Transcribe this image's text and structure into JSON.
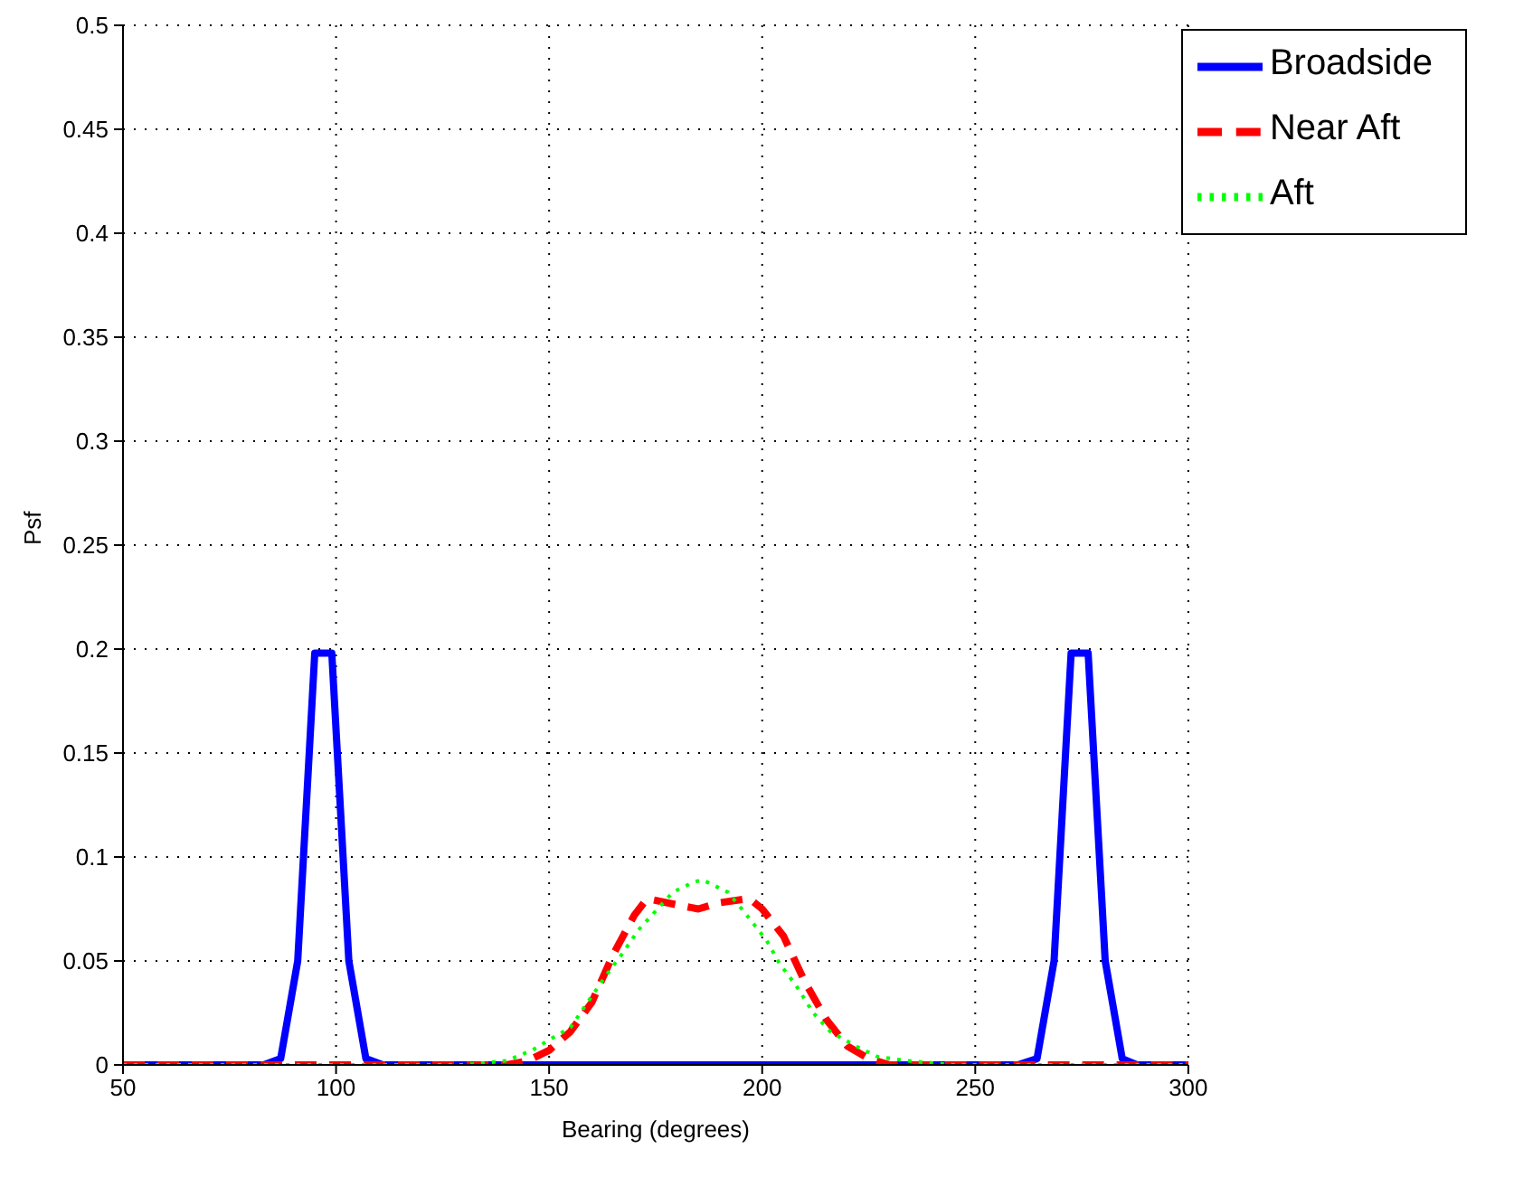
{
  "chart_data": {
    "type": "line",
    "xlabel": "Bearing (degrees)",
    "ylabel": "Psf",
    "xlim": [
      50,
      300
    ],
    "xticks": [
      50,
      100,
      150,
      200,
      250,
      300
    ],
    "ylim": [
      0,
      0.5
    ],
    "yticks": [
      0,
      0.05,
      0.1,
      0.15,
      0.2,
      0.25,
      0.3,
      0.35,
      0.4,
      0.45,
      0.5
    ],
    "grid": true,
    "legend": "top right",
    "marker": "none",
    "series": [
      {
        "name": "Broadside",
        "color": "#0000ff",
        "line_style": "solid",
        "x": [
          50,
          83,
          87,
          91,
          95,
          99,
          103,
          107,
          111,
          260,
          264.5,
          268.5,
          272.5,
          276.5,
          280.5,
          284.5,
          288,
          300
        ],
        "values": [
          0,
          0,
          0.003,
          0.05,
          0.198,
          0.198,
          0.05,
          0.003,
          0,
          0,
          0.003,
          0.05,
          0.198,
          0.198,
          0.05,
          0.003,
          0,
          0
        ]
      },
      {
        "name": "Near Aft",
        "color": "#ff0000",
        "line_style": "dashed",
        "x": [
          50,
          140,
          145,
          150,
          155,
          160,
          165,
          170,
          173,
          180,
          185,
          190,
          197,
          200,
          205,
          210,
          215,
          220,
          225,
          230,
          300
        ],
        "values": [
          0,
          0,
          0.002,
          0.007,
          0.016,
          0.03,
          0.053,
          0.072,
          0.08,
          0.077,
          0.075,
          0.078,
          0.08,
          0.075,
          0.062,
          0.04,
          0.022,
          0.009,
          0.003,
          0,
          0
        ]
      },
      {
        "name": "Aft",
        "color": "#00ff00",
        "line_style": "dotted",
        "x": [
          50,
          130,
          140,
          146,
          150,
          155,
          159,
          163,
          167,
          171,
          175,
          179,
          184,
          186,
          192,
          196,
          201,
          204,
          208,
          212,
          216,
          222,
          227,
          234,
          245,
          300
        ],
        "values": [
          0,
          0,
          0.002,
          0.007,
          0.012,
          0.018,
          0.03,
          0.042,
          0.053,
          0.065,
          0.074,
          0.083,
          0.088,
          0.089,
          0.083,
          0.073,
          0.06,
          0.049,
          0.038,
          0.025,
          0.016,
          0.009,
          0.004,
          0.002,
          0,
          0
        ]
      }
    ]
  }
}
